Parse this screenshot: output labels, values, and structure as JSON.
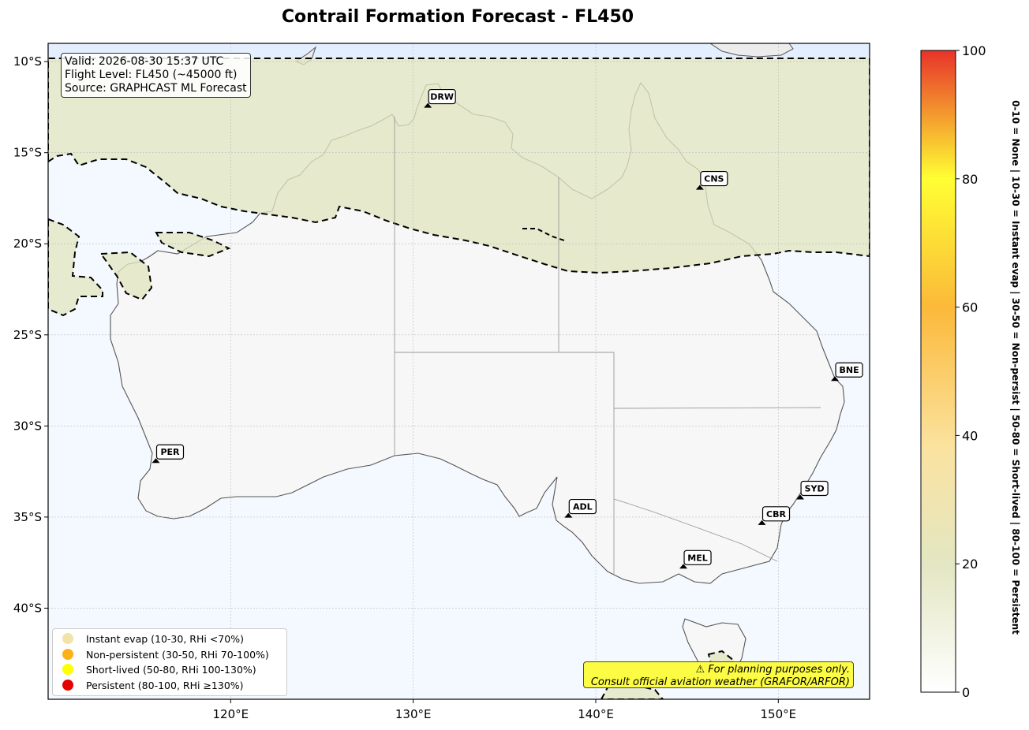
{
  "title": "Contrail Formation Forecast - FL450",
  "info": {
    "valid": "Valid: 2026-08-30 15:37 UTC",
    "flight_level": "Flight Level: FL450 (~45000 ft)",
    "source": "Source: GRAPHCAST ML Forecast"
  },
  "map": {
    "lon_range": [
      110,
      155
    ],
    "lat_range": [
      -45,
      -9
    ],
    "lon_ticks": [
      {
        "value": 120,
        "label": "120°E"
      },
      {
        "value": 130,
        "label": "130°E"
      },
      {
        "value": 140,
        "label": "140°E"
      },
      {
        "value": 150,
        "label": "150°E"
      }
    ],
    "lat_ticks": [
      {
        "value": -10,
        "label": "10°S"
      },
      {
        "value": -15,
        "label": "15°S"
      },
      {
        "value": -20,
        "label": "20°S"
      },
      {
        "value": -25,
        "label": "25°S"
      },
      {
        "value": -30,
        "label": "30°S"
      },
      {
        "value": -35,
        "label": "35°S"
      },
      {
        "value": -40,
        "label": "40°S"
      }
    ],
    "colors": {
      "ocean": "#f4f9ff",
      "land": "#f7f7f7",
      "instant_evap_zone": "#e6e9c8",
      "coastline": "#555555",
      "border": "#999999"
    },
    "airports": [
      {
        "code": "DRW",
        "lon": 130.8,
        "lat": -12.4
      },
      {
        "code": "CNS",
        "lon": 145.7,
        "lat": -16.9
      },
      {
        "code": "BNE",
        "lon": 153.1,
        "lat": -27.4
      },
      {
        "code": "PER",
        "lon": 115.9,
        "lat": -31.9
      },
      {
        "code": "ADL",
        "lon": 138.5,
        "lat": -34.9
      },
      {
        "code": "SYD",
        "lon": 151.2,
        "lat": -33.9
      },
      {
        "code": "CBR",
        "lon": 149.1,
        "lat": -35.3
      },
      {
        "code": "MEL",
        "lon": 144.8,
        "lat": -37.7
      }
    ]
  },
  "legend": [
    {
      "label": "Instant evap (10-30, RHi <70%)",
      "color": "#f0e4a8"
    },
    {
      "label": "Non-persistent (30-50, RHi 70-100%)",
      "color": "#fbb117"
    },
    {
      "label": "Short-lived (50-80, RHi 100-130%)",
      "color": "#ffff00"
    },
    {
      "label": "Persistent (80-100, RHi ≥130%)",
      "color": "#e60000"
    }
  ],
  "disclaimer": {
    "line1": "⚠ For planning purposes only.",
    "line2": "Consult official aviation weather (GRAFOR/ARFOR)"
  },
  "colorbar": {
    "ticks": [
      "0",
      "20",
      "40",
      "60",
      "80",
      "100"
    ],
    "range": [
      0,
      100
    ],
    "caption": "0-10 = None  |  10-30 = Instant evap  |  30-50 = Non-persist  |  50-80 = Short-lived  |  80-100 = Persistent"
  }
}
